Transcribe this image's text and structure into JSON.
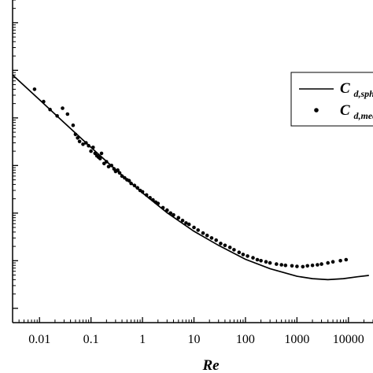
{
  "chart_data": {
    "type": "scatter",
    "xlabel": "Re",
    "ylabel": "",
    "x_scale": "log",
    "y_scale": "log",
    "xlim": [
      0.003,
      30000
    ],
    "ylim": [
      0.05,
      300000
    ],
    "x_ticks": [
      0.01,
      0.1,
      1,
      10,
      100,
      1000,
      10000
    ],
    "x_tick_labels": [
      "0.01",
      "0.1",
      "1",
      "10",
      "100",
      "1000",
      "10000"
    ],
    "grid": false,
    "legend_position": "right",
    "series": [
      {
        "name_main": "C",
        "name_sub": "d,sph",
        "style": "line",
        "color": "#000000",
        "x": [
          0.003,
          0.01,
          0.03,
          0.1,
          0.3,
          1,
          3,
          10,
          30,
          100,
          300,
          1000,
          2000,
          4000,
          8000,
          15000,
          25000
        ],
        "y": [
          8000,
          2400,
          800,
          240,
          82,
          26.5,
          10.2,
          4.15,
          2.1,
          1.07,
          0.68,
          0.47,
          0.42,
          0.4,
          0.42,
          0.46,
          0.49
        ]
      },
      {
        "name_main": "C",
        "name_sub": "d,mea",
        "style": "points",
        "color": "#000000",
        "points": [
          [
            0.008,
            4000
          ],
          [
            0.012,
            2200
          ],
          [
            0.016,
            1500
          ],
          [
            0.022,
            1100
          ],
          [
            0.028,
            1600
          ],
          [
            0.035,
            1200
          ],
          [
            0.045,
            700
          ],
          [
            0.05,
            450
          ],
          [
            0.055,
            380
          ],
          [
            0.06,
            320
          ],
          [
            0.07,
            280
          ],
          [
            0.08,
            300
          ],
          [
            0.09,
            260
          ],
          [
            0.1,
            200
          ],
          [
            0.11,
            240
          ],
          [
            0.12,
            180
          ],
          [
            0.13,
            160
          ],
          [
            0.14,
            150
          ],
          [
            0.15,
            140
          ],
          [
            0.16,
            180
          ],
          [
            0.18,
            110
          ],
          [
            0.2,
            120
          ],
          [
            0.22,
            95
          ],
          [
            0.25,
            100
          ],
          [
            0.28,
            85
          ],
          [
            0.3,
            75
          ],
          [
            0.33,
            80
          ],
          [
            0.36,
            70
          ],
          [
            0.4,
            60
          ],
          [
            0.45,
            55
          ],
          [
            0.5,
            50
          ],
          [
            0.55,
            48
          ],
          [
            0.6,
            42
          ],
          [
            0.7,
            38
          ],
          [
            0.8,
            34
          ],
          [
            0.9,
            30
          ],
          [
            1,
            28
          ],
          [
            1.2,
            24
          ],
          [
            1.4,
            21
          ],
          [
            1.6,
            19
          ],
          [
            1.8,
            17
          ],
          [
            2,
            16
          ],
          [
            2.5,
            13
          ],
          [
            3,
            11.5
          ],
          [
            3.5,
            10
          ],
          [
            4,
            9.2
          ],
          [
            5,
            8
          ],
          [
            6,
            7
          ],
          [
            7,
            6.2
          ],
          [
            8,
            5.8
          ],
          [
            10,
            5
          ],
          [
            12,
            4.4
          ],
          [
            15,
            3.8
          ],
          [
            18,
            3.4
          ],
          [
            22,
            3
          ],
          [
            27,
            2.7
          ],
          [
            33,
            2.3
          ],
          [
            40,
            2.1
          ],
          [
            50,
            1.9
          ],
          [
            60,
            1.7
          ],
          [
            75,
            1.5
          ],
          [
            90,
            1.35
          ],
          [
            110,
            1.25
          ],
          [
            140,
            1.15
          ],
          [
            170,
            1.05
          ],
          [
            200,
            1.0
          ],
          [
            250,
            0.95
          ],
          [
            300,
            0.9
          ],
          [
            400,
            0.85
          ],
          [
            500,
            0.82
          ],
          [
            600,
            0.8
          ],
          [
            800,
            0.78
          ],
          [
            1000,
            0.76
          ],
          [
            1300,
            0.75
          ],
          [
            1600,
            0.78
          ],
          [
            2000,
            0.8
          ],
          [
            2500,
            0.82
          ],
          [
            3000,
            0.85
          ],
          [
            4000,
            0.9
          ],
          [
            5000,
            0.95
          ],
          [
            7000,
            1.0
          ],
          [
            9000,
            1.05
          ]
        ]
      }
    ]
  }
}
